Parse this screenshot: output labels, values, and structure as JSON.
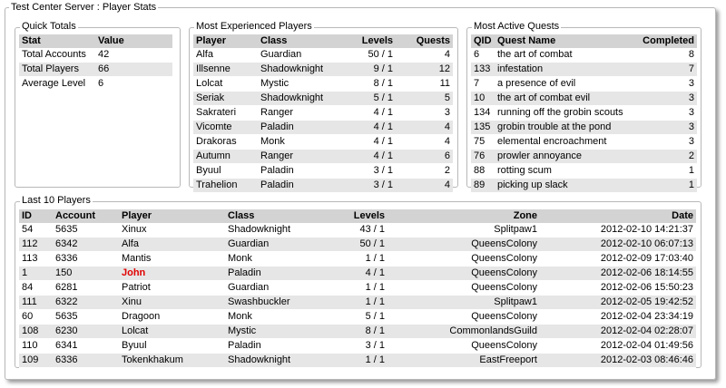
{
  "title": "Test Center Server : Player Stats",
  "quick_totals": {
    "title": "Quick Totals",
    "columns": [
      "Stat",
      "Value"
    ],
    "rows": [
      [
        "Total Accounts",
        42
      ],
      [
        "Total Players",
        66
      ],
      [
        "Average Level",
        6
      ]
    ]
  },
  "most_experienced": {
    "title": "Most Experienced Players",
    "columns": [
      "Player",
      "Class",
      "Levels",
      "Quests"
    ],
    "rows": [
      [
        "Alfa",
        "Guardian",
        "50 / 1",
        4
      ],
      [
        "Illsenne",
        "Shadowknight",
        "9 / 1",
        12
      ],
      [
        "Lolcat",
        "Mystic",
        "8 / 1",
        11
      ],
      [
        "Seriak",
        "Shadowknight",
        "5 / 1",
        5
      ],
      [
        "Sakrateri",
        "Ranger",
        "4 / 1",
        3
      ],
      [
        "Vicomte",
        "Paladin",
        "4 / 1",
        4
      ],
      [
        "Drakoras",
        "Monk",
        "4 / 1",
        4
      ],
      [
        "Autumn",
        "Ranger",
        "4 / 1",
        6
      ],
      [
        "Byuul",
        "Paladin",
        "3 / 1",
        2
      ],
      [
        "Trahelion",
        "Paladin",
        "3 / 1",
        4
      ]
    ]
  },
  "most_active_quests": {
    "title": "Most Active Quests",
    "columns": [
      "QID",
      "Quest Name",
      "Completed"
    ],
    "rows": [
      [
        6,
        "the art of combat",
        8
      ],
      [
        133,
        "infestation",
        7
      ],
      [
        7,
        "a presence of evil",
        3
      ],
      [
        10,
        "the art of combat evil",
        3
      ],
      [
        134,
        "running off the grobin scouts",
        3
      ],
      [
        135,
        "grobin trouble at the pond",
        3
      ],
      [
        75,
        "elemental encroachment",
        3
      ],
      [
        76,
        "prowler annoyance",
        2
      ],
      [
        88,
        "rotting scum",
        1
      ],
      [
        89,
        "picking up slack",
        1
      ]
    ]
  },
  "last_players": {
    "title": "Last 10 Players",
    "columns": [
      "ID",
      "Account",
      "Player",
      "Class",
      "Levels",
      "Zone",
      "Date"
    ],
    "rows": [
      [
        54,
        5635,
        "Xinux",
        "Shadowknight",
        "43 / 1",
        "Splitpaw1",
        "2012-02-10 14:21:37"
      ],
      [
        112,
        6342,
        "Alfa",
        "Guardian",
        "50 / 1",
        "QueensColony",
        "2012-02-10 06:07:13"
      ],
      [
        113,
        6336,
        "Mantis",
        "Monk",
        "1 / 1",
        "QueensColony",
        "2012-02-09 17:03:40"
      ],
      [
        1,
        150,
        "John",
        "Paladin",
        "4 / 1",
        "QueensColony",
        "2012-02-06 18:14:55"
      ],
      [
        84,
        6281,
        "Patriot",
        "Guardian",
        "1 / 1",
        "QueensColony",
        "2012-02-06 15:50:23"
      ],
      [
        111,
        6322,
        "Xinu",
        "Swashbuckler",
        "1 / 1",
        "Splitpaw1",
        "2012-02-05 19:42:52"
      ],
      [
        60,
        5635,
        "Dragoon",
        "Monk",
        "5 / 1",
        "QueensColony",
        "2012-02-04 23:34:19"
      ],
      [
        108,
        6230,
        "Lolcat",
        "Mystic",
        "8 / 1",
        "CommonlandsGuild",
        "2012-02-04 02:28:07"
      ],
      [
        110,
        6341,
        "Byuul",
        "Paladin",
        "3 / 1",
        "QueensColony",
        "2012-02-04 01:49:56"
      ],
      [
        109,
        6336,
        "Tokenkhakum",
        "Shadowknight",
        "1 / 1",
        "EastFreeport",
        "2012-02-03 08:46:46"
      ]
    ]
  }
}
